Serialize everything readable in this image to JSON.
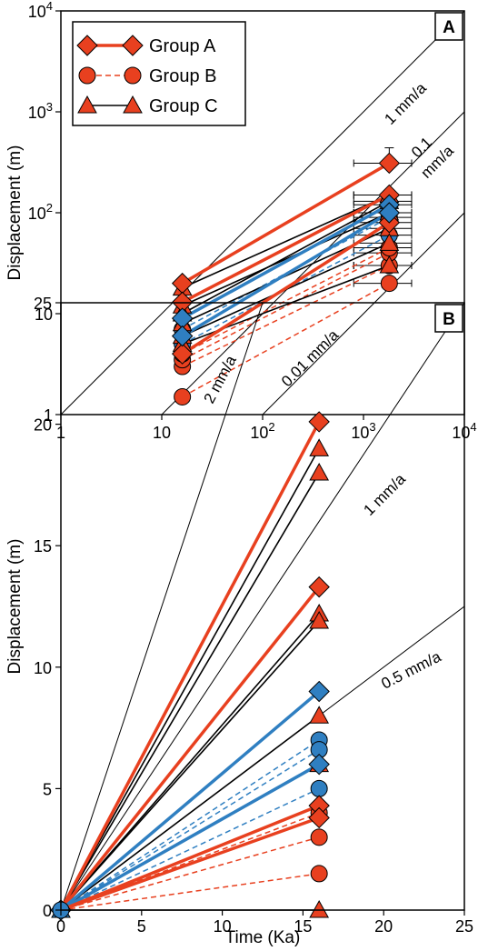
{
  "colors": {
    "group_a": "#e8401f",
    "group_b": "#e8401f",
    "group_c": "#000000",
    "blue": "#2f7fc1",
    "ref": "#000000"
  },
  "chart_data": [
    {
      "panel": "A",
      "type": "line",
      "x_scale": "log",
      "y_scale": "log",
      "xlim": [
        1,
        10000
      ],
      "ylim": [
        1,
        10000
      ],
      "x_ticks": [
        {
          "v": 1,
          "label": "1",
          "exp": ""
        },
        {
          "v": 10,
          "label": "10",
          "exp": ""
        },
        {
          "v": 100,
          "label": "10",
          "exp": "2"
        },
        {
          "v": 1000,
          "label": "10",
          "exp": "3"
        },
        {
          "v": 10000,
          "label": "10",
          "exp": "4"
        }
      ],
      "y_ticks": [
        {
          "v": 1,
          "label": "1",
          "exp": ""
        },
        {
          "v": 10,
          "label": "10",
          "exp": ""
        },
        {
          "v": 100,
          "label": "10",
          "exp": "2"
        },
        {
          "v": 1000,
          "label": "10",
          "exp": "3"
        },
        {
          "v": 10000,
          "label": "10",
          "exp": "4"
        }
      ],
      "ylabel": "Displacement (m)",
      "xlabel": "",
      "legend": {
        "placement": "top-left",
        "entries": [
          {
            "label": "Group A",
            "marker": "diamond",
            "style": "solid-thick"
          },
          {
            "label": "Group B",
            "marker": "circle",
            "style": "dashed"
          },
          {
            "label": "Group C",
            "marker": "triangle",
            "style": "solid-thin"
          }
        ]
      },
      "rate_lines": [
        {
          "rate": 1,
          "label": "1 mm/a"
        },
        {
          "rate": 0.1,
          "label": "0.1 mm/a"
        },
        {
          "rate": 0.01,
          "label": "0.01 mm/a"
        }
      ],
      "error_bars_x": [
        800,
        3000
      ],
      "series": [
        {
          "group": "A",
          "color": "red",
          "x": [
            16,
            1800
          ],
          "y": [
            20,
            310
          ]
        },
        {
          "group": "A",
          "color": "red",
          "x": [
            16,
            1800
          ],
          "y": [
            13,
            150
          ]
        },
        {
          "group": "A",
          "color": "red",
          "x": [
            16,
            1800
          ],
          "y": [
            4,
            80
          ]
        },
        {
          "group": "A",
          "color": "blue",
          "x": [
            16,
            1800
          ],
          "y": [
            9,
            120
          ]
        },
        {
          "group": "A",
          "color": "blue",
          "x": [
            16,
            1800
          ],
          "y": [
            6,
            100
          ]
        },
        {
          "group": "B",
          "color": "red",
          "x": [
            16,
            1800
          ],
          "y": [
            1.5,
            20
          ]
        },
        {
          "group": "B",
          "color": "red",
          "x": [
            16,
            1800
          ],
          "y": [
            3,
            30
          ]
        },
        {
          "group": "B",
          "color": "red",
          "x": [
            16,
            1800
          ],
          "y": [
            3.5,
            40
          ]
        },
        {
          "group": "B",
          "color": "red",
          "x": [
            16,
            1800
          ],
          "y": [
            4,
            45
          ]
        },
        {
          "group": "B",
          "color": "blue",
          "x": [
            16,
            1800
          ],
          "y": [
            5,
            60
          ]
        },
        {
          "group": "B",
          "color": "blue",
          "x": [
            16,
            1800
          ],
          "y": [
            7,
            90
          ]
        },
        {
          "group": "C",
          "color": "red",
          "x": [
            16,
            1800
          ],
          "y": [
            18,
            150
          ]
        },
        {
          "group": "C",
          "color": "red",
          "x": [
            16,
            1800
          ],
          "y": [
            12,
            100
          ]
        },
        {
          "group": "C",
          "color": "red",
          "x": [
            16,
            1800
          ],
          "y": [
            8,
            70
          ]
        },
        {
          "group": "C",
          "color": "red",
          "x": [
            16,
            1800
          ],
          "y": [
            6,
            50
          ]
        },
        {
          "group": "C",
          "color": "red",
          "x": [
            16,
            1800
          ],
          "y": [
            5,
            30
          ]
        },
        {
          "group": "C",
          "color": "blue",
          "x": [
            16,
            1800
          ],
          "y": [
            10,
            130
          ]
        }
      ]
    },
    {
      "panel": "B",
      "type": "line",
      "xlim": [
        0,
        25
      ],
      "ylim": [
        0,
        25
      ],
      "x_ticks": [
        0,
        5,
        10,
        15,
        20,
        25
      ],
      "y_ticks": [
        0,
        5,
        10,
        15,
        20,
        25
      ],
      "xlabel": "Time (Ka)",
      "ylabel": "Displacement (m)",
      "rate_lines": [
        {
          "rate": 2,
          "label": "2 mm/a"
        },
        {
          "rate": 1,
          "label": "1 mm/a"
        },
        {
          "rate": 0.5,
          "label": "0.5 mm/a"
        }
      ],
      "series": [
        {
          "group": "A",
          "color": "red",
          "x": [
            0,
            16
          ],
          "y": [
            0,
            20.1
          ]
        },
        {
          "group": "A",
          "color": "red",
          "x": [
            0,
            16
          ],
          "y": [
            0,
            13.3
          ]
        },
        {
          "group": "A",
          "color": "blue",
          "x": [
            0,
            16
          ],
          "y": [
            0,
            9.0
          ]
        },
        {
          "group": "A",
          "color": "blue",
          "x": [
            0,
            16
          ],
          "y": [
            0,
            6.0
          ]
        },
        {
          "group": "A",
          "color": "red",
          "x": [
            0,
            16
          ],
          "y": [
            0,
            4.3
          ]
        },
        {
          "group": "A",
          "color": "red",
          "x": [
            0,
            16
          ],
          "y": [
            0,
            3.8
          ]
        },
        {
          "group": "B",
          "color": "blue",
          "x": [
            0,
            16
          ],
          "y": [
            0,
            7.0
          ]
        },
        {
          "group": "B",
          "color": "blue",
          "x": [
            0,
            16
          ],
          "y": [
            0,
            6.6
          ]
        },
        {
          "group": "B",
          "color": "blue",
          "x": [
            0,
            16
          ],
          "y": [
            0,
            5.0
          ]
        },
        {
          "group": "B",
          "color": "red",
          "x": [
            0,
            16
          ],
          "y": [
            0,
            4.0
          ]
        },
        {
          "group": "B",
          "color": "red",
          "x": [
            0,
            16
          ],
          "y": [
            0,
            3.0
          ]
        },
        {
          "group": "B",
          "color": "red",
          "x": [
            0,
            16
          ],
          "y": [
            0,
            1.5
          ]
        },
        {
          "group": "C",
          "color": "red",
          "x": [
            0,
            16
          ],
          "y": [
            0,
            19.0
          ]
        },
        {
          "group": "C",
          "color": "red",
          "x": [
            0,
            16
          ],
          "y": [
            0,
            18.0
          ]
        },
        {
          "group": "C",
          "color": "red",
          "x": [
            0,
            16
          ],
          "y": [
            0,
            12.2
          ]
        },
        {
          "group": "C",
          "color": "red",
          "x": [
            0,
            16
          ],
          "y": [
            0,
            11.9
          ]
        },
        {
          "group": "C",
          "color": "red",
          "x": [
            0,
            16
          ],
          "y": [
            0,
            8.0
          ]
        },
        {
          "group": "C",
          "color": "red",
          "x": [
            0,
            16
          ],
          "y": [
            0,
            6.0
          ]
        },
        {
          "group": "C",
          "color": "red",
          "x": [
            0,
            16
          ],
          "y": [
            0,
            0
          ]
        }
      ]
    }
  ]
}
